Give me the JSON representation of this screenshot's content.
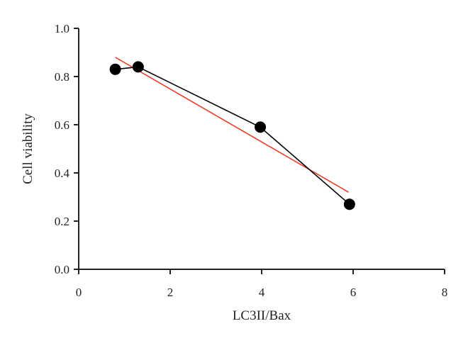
{
  "chart_data": {
    "type": "scatter",
    "xlabel": "LC3II/Bax",
    "ylabel": "Cell viability",
    "xlim": [
      0,
      8
    ],
    "ylim": [
      0.0,
      1.0
    ],
    "x_ticks": [
      "0",
      "2",
      "4",
      "6",
      "8"
    ],
    "y_ticks": [
      "0.0",
      "0.2",
      "0.4",
      "0.6",
      "0.8",
      "1.0"
    ],
    "grid": false,
    "series": [
      {
        "marker": "circle",
        "connected": true,
        "color": "#000000",
        "points": [
          {
            "x": 0.8,
            "y": 0.83
          },
          {
            "x": 1.3,
            "y": 0.84
          },
          {
            "x": 3.97,
            "y": 0.59
          },
          {
            "x": 5.92,
            "y": 0.27
          }
        ]
      }
    ],
    "fit_line": {
      "color": "#e8402a",
      "from": {
        "x": 0.8,
        "y": 0.88
      },
      "to": {
        "x": 5.9,
        "y": 0.32
      }
    }
  }
}
